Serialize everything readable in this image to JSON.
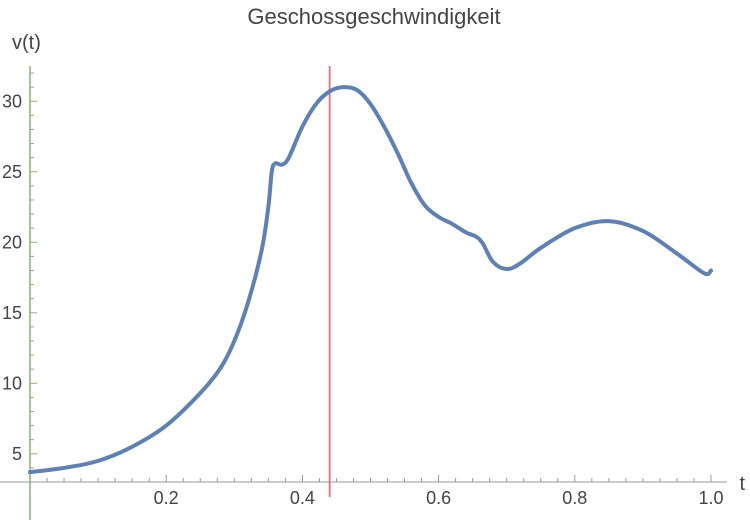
{
  "chart_data": {
    "type": "line",
    "title": "Geschossgeschwindigkeit",
    "xlabel": "t",
    "ylabel": "v(t)",
    "xlim": [
      0.0,
      1.0
    ],
    "ylim": [
      3.0,
      32.5
    ],
    "x_ticks": [
      0.2,
      0.4,
      0.6,
      0.8,
      1.0
    ],
    "x_tick_labels": [
      "0.2",
      "0.4",
      "0.6",
      "0.8",
      "1.0"
    ],
    "y_ticks": [
      5,
      10,
      15,
      20,
      25,
      30
    ],
    "y_tick_labels": [
      "5",
      "10",
      "15",
      "20",
      "25",
      "30"
    ],
    "grid": false,
    "vertical_marker_x": 0.44,
    "colors": {
      "series": "#5e81b5",
      "marker": "#e8707a",
      "y_axis": "#8cb46f",
      "x_axis": "#999999",
      "text": "#444444"
    },
    "series": [
      {
        "x": [
          0.0,
          0.05,
          0.1,
          0.15,
          0.2,
          0.25,
          0.28,
          0.3,
          0.32,
          0.34,
          0.35,
          0.355,
          0.36,
          0.37,
          0.38,
          0.4,
          0.42,
          0.44,
          0.46,
          0.48,
          0.5,
          0.52,
          0.54,
          0.56,
          0.58,
          0.6,
          0.62,
          0.64,
          0.655,
          0.665,
          0.68,
          0.7,
          0.72,
          0.75,
          0.8,
          0.85,
          0.9,
          0.95,
          0.99,
          1.0
        ],
        "y": [
          3.7,
          4.0,
          4.5,
          5.5,
          7.0,
          9.3,
          11.1,
          13.0,
          15.7,
          19.4,
          22.5,
          25.0,
          25.6,
          25.5,
          26.0,
          28.2,
          29.8,
          30.7,
          31.0,
          30.8,
          29.8,
          28.2,
          26.3,
          24.2,
          22.6,
          21.8,
          21.3,
          20.7,
          20.4,
          19.9,
          18.6,
          18.1,
          18.5,
          19.6,
          21.0,
          21.5,
          20.8,
          19.2,
          17.8,
          18.0
        ]
      }
    ]
  }
}
